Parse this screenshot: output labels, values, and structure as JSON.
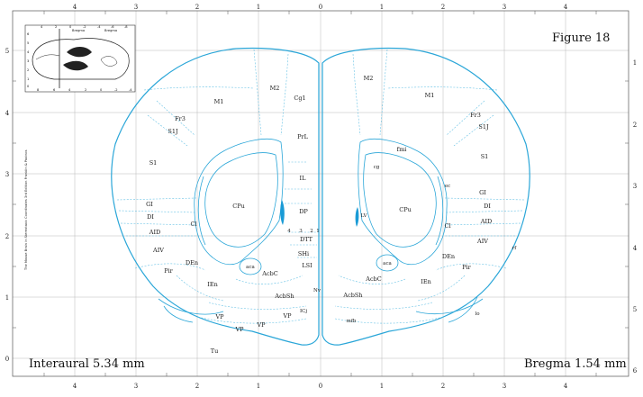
{
  "figure_title": "Figure 18",
  "interaural": "Interaural 5.34 mm",
  "bregma": "Bregma 1.54 mm",
  "credit_text": "The Mouse Brain in Stereotaxic Coordinates 3rd Edition  Franklin & Paxinos",
  "inset": {
    "label_left": "Bregma",
    "label_right": "Bregma",
    "top_ticks": [
      "4",
      "2",
      "0",
      "-2",
      "-4",
      "-6",
      "-8"
    ],
    "bottom_ticks": [
      "8",
      "6",
      "4",
      "2",
      "0",
      "-2",
      "-4"
    ],
    "left_ticks": [
      "6",
      "5",
      "4",
      "3",
      "2",
      "1",
      "0"
    ]
  },
  "axes": {
    "top_ticks": [
      "4",
      "3",
      "2",
      "1",
      "0",
      "1",
      "2",
      "3",
      "4"
    ],
    "bottom_ticks": [
      "4",
      "3",
      "2",
      "1",
      "0",
      "1",
      "2",
      "3",
      "4"
    ],
    "left_ticks": [
      "5",
      "4",
      "3",
      "2",
      "1",
      "0"
    ],
    "right_ticks": [
      "1",
      "2",
      "3",
      "4",
      "5",
      "6"
    ]
  },
  "regions": {
    "m2_left": "M2",
    "m2_right": "M2",
    "m1_left": "M1",
    "m1_right": "M1",
    "cg1": "Cg1",
    "prl": "PrL",
    "il": "IL",
    "dp": "DP",
    "fr3_left": "Fr3",
    "fr3_right": "Fr3",
    "s1j_left": "S1J",
    "s1j_right": "S1J",
    "s1_left": "S1",
    "s1_right": "S1",
    "fmi": "fmi",
    "cg": "cg",
    "ec": "ec",
    "gi_left": "GI",
    "gi_right": "GI",
    "di_left": "DI",
    "di_right": "DI",
    "aid_left": "AID",
    "aid_right": "AID",
    "aiv_left": "AIV",
    "aiv_right": "AIV",
    "cl_left": "Cl",
    "cl_right": "Cl",
    "cpu_left": "CPu",
    "cpu_right": "CPu",
    "lv": "LV",
    "n4": "4",
    "n3": "3",
    "n2": "2",
    "n1": "1",
    "dtt": "DTT",
    "shi": "SHi",
    "lsi": "LSI",
    "den_left": "DEn",
    "den_right": "DEn",
    "pir_left": "Pir",
    "pir_right": "Pir",
    "aca_left": "aca",
    "aca_right": "aca",
    "acbc_left": "AcbC",
    "acbc_right": "AcbC",
    "ien_left": "IEn",
    "ien_right": "IEn",
    "acbsh_left": "AcbSh",
    "acbsh_right": "AcbSh",
    "rf": "rf",
    "lo": "lo",
    "vp_a": "VP",
    "vp_b": "VP",
    "vp_c": "VP",
    "vp_d": "VP",
    "icj": "ICj",
    "nv": "Nv",
    "mfb": "mfb",
    "tu": "Tu"
  }
}
